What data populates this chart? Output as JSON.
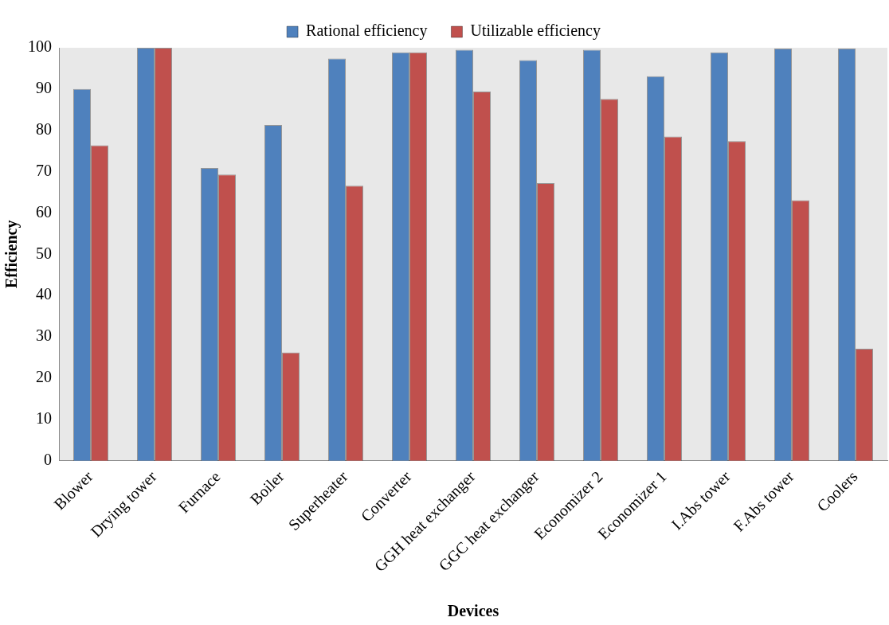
{
  "chart_data": {
    "type": "bar",
    "xlabel": "Devices",
    "ylabel": "Efficiency",
    "categories": [
      "Blower",
      "Drying tower",
      "Furnace",
      "Boiler",
      "Superheater",
      "Converter",
      "GGH heat exchanger",
      "GGC heat exchanger",
      "Economizer 2",
      "Economizer 1",
      "I.Abs tower",
      "F.Abs tower",
      "Coolers"
    ],
    "series": [
      {
        "name": "Rational efficiency",
        "color": "#4f81bd",
        "values": [
          90,
          100,
          70.9,
          81.3,
          97.4,
          98.9,
          99.5,
          97,
          99.5,
          93.1,
          98.9,
          99.8,
          99.8
        ]
      },
      {
        "name": "Utilizable efficiency",
        "color": "#c0504d",
        "values": [
          76.4,
          100,
          69.3,
          26.2,
          66.6,
          98.9,
          89.4,
          67.2,
          87.6,
          78.5,
          77.4,
          63.1,
          27.1
        ]
      }
    ],
    "ylim": [
      0,
      100
    ],
    "yticks": [
      0,
      10,
      20,
      30,
      40,
      50,
      60,
      70,
      80,
      90,
      100
    ],
    "grid": false,
    "legend": "top"
  }
}
